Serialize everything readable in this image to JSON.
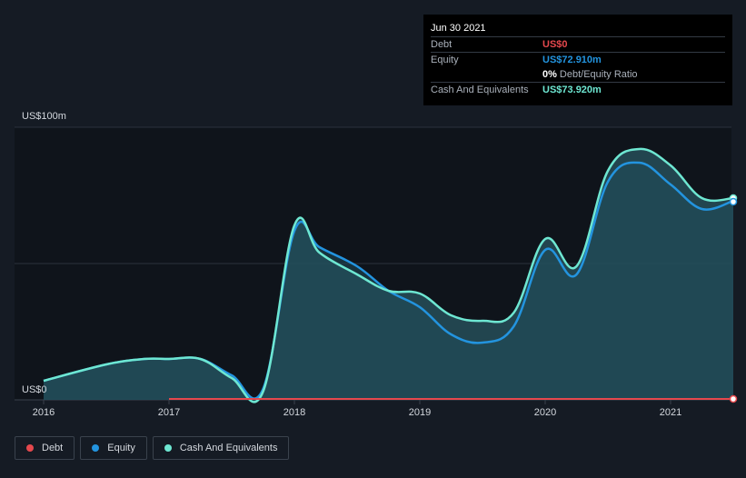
{
  "tooltip": {
    "date": "Jun 30 2021",
    "debt_label": "Debt",
    "debt_value": "US$0",
    "equity_label": "Equity",
    "equity_value": "US$72.910m",
    "ratio_value": "0%",
    "ratio_label": "Debt/Equity Ratio",
    "cash_label": "Cash And Equivalents",
    "cash_value": "US$73.920m"
  },
  "legend": {
    "debt": "Debt",
    "equity": "Equity",
    "cash": "Cash And Equivalents"
  },
  "colors": {
    "debt": "#e5484d",
    "equity": "#2394df",
    "cash": "#6ee7d2",
    "background": "#151b24",
    "plot_background": "#0f141b"
  },
  "chart_data": {
    "type": "area",
    "y_unit_labels": [
      "US$0",
      "US$100m"
    ],
    "ylim": [
      0,
      100
    ],
    "xlim": [
      2015.8,
      2021.5
    ],
    "x_ticks": [
      "2016",
      "2017",
      "2018",
      "2019",
      "2020",
      "2021"
    ],
    "grid": true,
    "legend_position": "bottom-left",
    "series": [
      {
        "name": "Debt",
        "x": [
          2017.0,
          2021.5
        ],
        "values": [
          0,
          0
        ]
      },
      {
        "name": "Equity",
        "x": [
          2016.0,
          2016.5,
          2016.8,
          2017.0,
          2017.25,
          2017.5,
          2017.75,
          2018.0,
          2018.2,
          2018.5,
          2018.75,
          2019.0,
          2019.25,
          2019.5,
          2019.75,
          2020.0,
          2020.25,
          2020.5,
          2020.75,
          2021.0,
          2021.25,
          2021.5
        ],
        "values": [
          7,
          13,
          15,
          15,
          15,
          9,
          4,
          62,
          56,
          49,
          40,
          34,
          24,
          21,
          27,
          55,
          46,
          80,
          87,
          79,
          70,
          73
        ]
      },
      {
        "name": "Cash And Equivalents",
        "x": [
          2016.0,
          2016.5,
          2016.8,
          2017.0,
          2017.25,
          2017.5,
          2017.75,
          2018.0,
          2018.2,
          2018.5,
          2018.75,
          2019.0,
          2019.25,
          2019.5,
          2019.75,
          2020.0,
          2020.25,
          2020.5,
          2020.75,
          2021.0,
          2021.25,
          2021.5
        ],
        "values": [
          7,
          13,
          15,
          15,
          15,
          8,
          3,
          64,
          54,
          46,
          40,
          39,
          31,
          29,
          32,
          59,
          49,
          84,
          92,
          86,
          74,
          74
        ]
      }
    ]
  }
}
